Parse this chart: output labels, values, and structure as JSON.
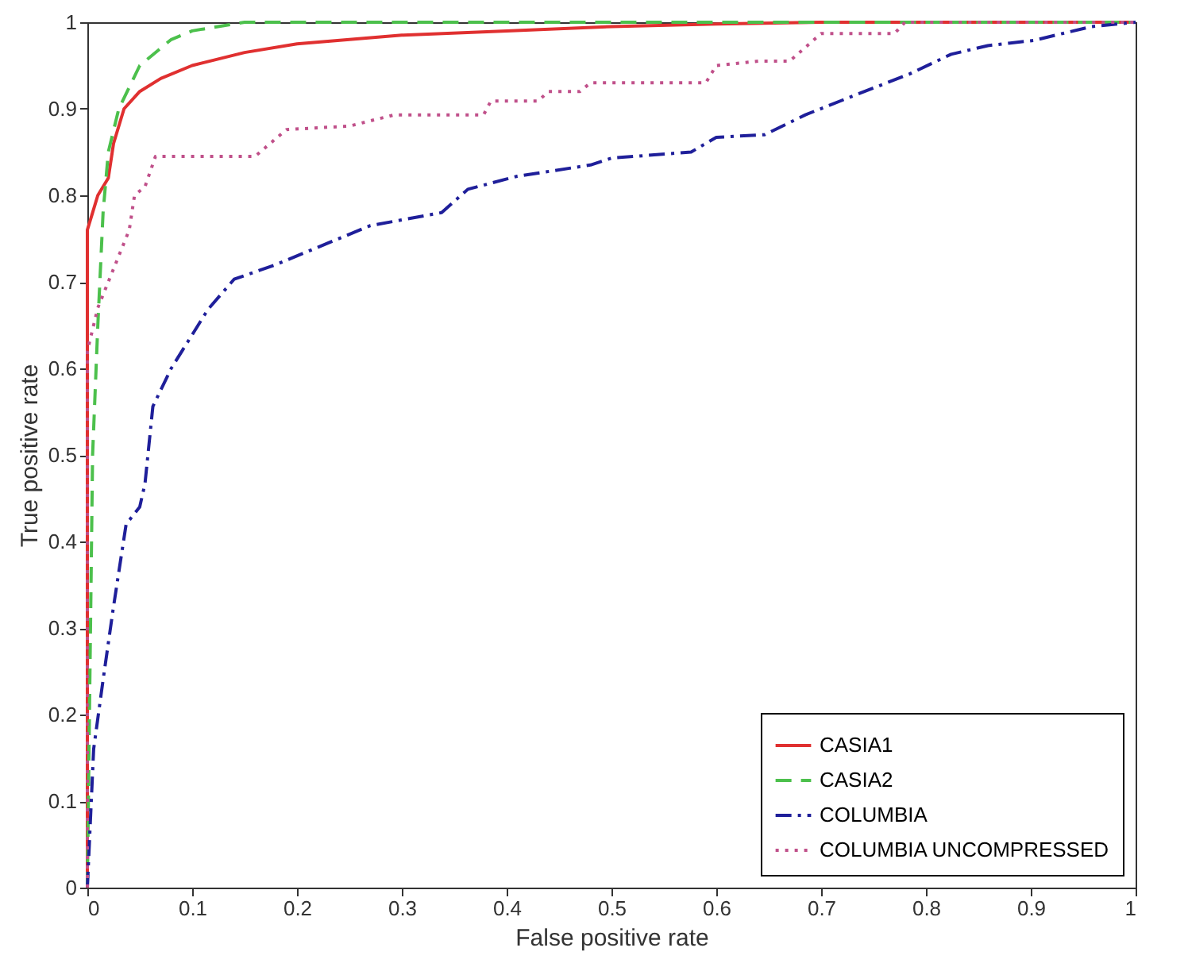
{
  "chart_data": {
    "type": "line",
    "xlabel": "False positive rate",
    "ylabel": "True positive rate",
    "xlim": [
      0,
      1
    ],
    "ylim": [
      0,
      1
    ],
    "xticks": [
      0,
      0.1,
      0.2,
      0.3,
      0.4,
      0.5,
      0.6,
      0.7,
      0.8,
      0.9,
      1
    ],
    "yticks": [
      0,
      0.1,
      0.2,
      0.3,
      0.4,
      0.5,
      0.6,
      0.7,
      0.8,
      0.9,
      1
    ],
    "legend": "bottom right",
    "marker": "none",
    "series": [
      {
        "name": "CASIA1",
        "color": "#e03030",
        "line_style": "solid",
        "x": [
          0,
          0,
          0.005,
          0.01,
          0.02,
          0.025,
          0.035,
          0.05,
          0.07,
          0.1,
          0.15,
          0.2,
          0.3,
          0.4,
          0.5,
          0.6,
          0.7,
          1
        ],
        "values": [
          0,
          0.76,
          0.78,
          0.8,
          0.82,
          0.86,
          0.9,
          0.92,
          0.935,
          0.95,
          0.965,
          0.975,
          0.985,
          0.99,
          0.995,
          0.998,
          1,
          1
        ]
      },
      {
        "name": "CASIA2",
        "color": "#4cc04c",
        "line_style": "dashed",
        "x": [
          0,
          0.005,
          0.01,
          0.015,
          0.02,
          0.03,
          0.05,
          0.08,
          0.1,
          0.15,
          1
        ],
        "values": [
          0,
          0.5,
          0.65,
          0.78,
          0.85,
          0.9,
          0.95,
          0.98,
          0.99,
          1,
          1
        ]
      },
      {
        "name": "COLUMBIA",
        "color": "#1f1f9a",
        "line_style": "dashdot",
        "x": [
          0,
          0.006,
          0.015,
          0.025,
          0.037,
          0.05,
          0.055,
          0.0625,
          0.08,
          0.115,
          0.14,
          0.18,
          0.23,
          0.27,
          0.338,
          0.363,
          0.41,
          0.48,
          0.5,
          0.576,
          0.6,
          0.646,
          0.685,
          0.735,
          0.784,
          0.824,
          0.859,
          0.903,
          0.958,
          1
        ],
        "values": [
          0,
          0.16,
          0.24,
          0.325,
          0.42,
          0.44,
          0.467,
          0.556,
          0.6,
          0.668,
          0.703,
          0.72,
          0.745,
          0.765,
          0.78,
          0.807,
          0.822,
          0.835,
          0.843,
          0.85,
          0.867,
          0.87,
          0.893,
          0.917,
          0.94,
          0.963,
          0.973,
          0.979,
          0.995,
          1
        ]
      },
      {
        "name": "COLUMBIA UNCOMPRESSED",
        "color": "#c0508a",
        "line_style": "dotted",
        "x": [
          0,
          0,
          0.01,
          0.02,
          0.03,
          0.04,
          0.045,
          0.055,
          0.065,
          0.16,
          0.19,
          0.25,
          0.293,
          0.378,
          0.385,
          0.43,
          0.44,
          0.47,
          0.48,
          0.59,
          0.6,
          0.64,
          0.67,
          0.7,
          0.77,
          0.78,
          1
        ],
        "values": [
          0,
          0.62,
          0.67,
          0.7,
          0.73,
          0.76,
          0.8,
          0.81,
          0.845,
          0.845,
          0.876,
          0.88,
          0.893,
          0.893,
          0.909,
          0.909,
          0.92,
          0.92,
          0.93,
          0.93,
          0.95,
          0.955,
          0.955,
          0.987,
          0.987,
          1,
          1
        ]
      }
    ]
  }
}
